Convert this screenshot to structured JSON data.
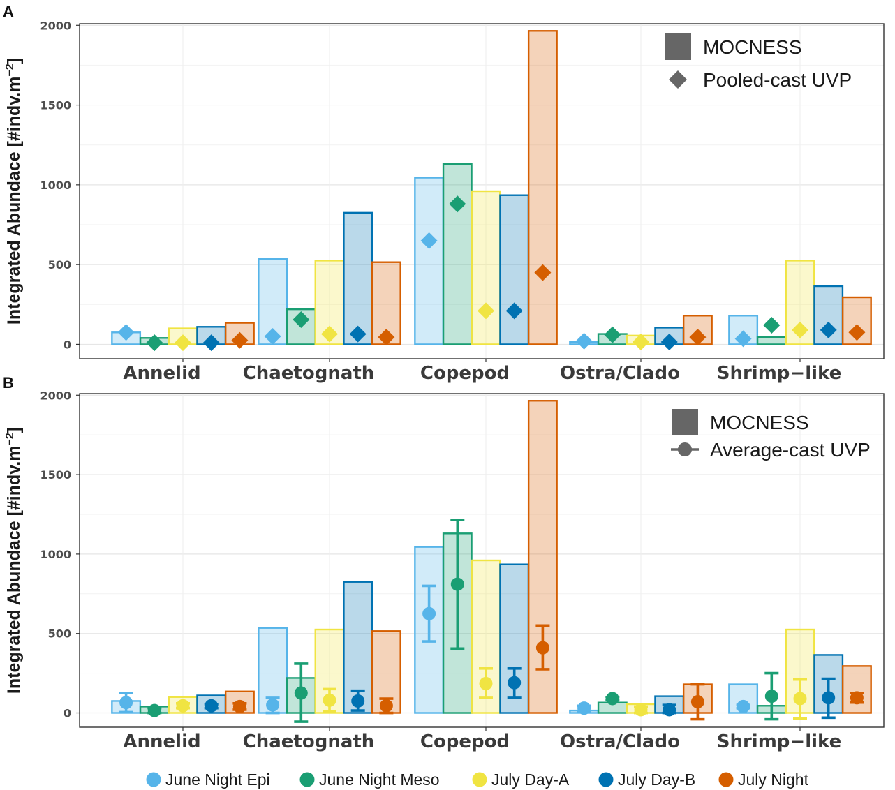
{
  "figure": {
    "series": [
      {
        "name": "June Night Epi",
        "color": "#56B4E9"
      },
      {
        "name": "June Night Meso",
        "color": "#1A9E73"
      },
      {
        "name": "July Day-A",
        "color": "#F0E442"
      },
      {
        "name": "July Day-B",
        "color": "#0072B2"
      },
      {
        "name": "July Night",
        "color": "#D55E00"
      }
    ]
  },
  "chart_data": [
    {
      "panel": "A",
      "type": "bar",
      "ylabel": "Integrated Abundace [#indv.m⁻²]",
      "ylabel_main": "Integrated Abundace [#indv.m",
      "ylabel_sup": "−2",
      "ylabel_close": "]",
      "ylim": [
        -90,
        2010
      ],
      "yticks": [
        0,
        500,
        1000,
        1500,
        2000
      ],
      "categories": [
        "Annelid",
        "Chaetognath",
        "Copepod",
        "Ostra/Clado",
        "Shrimp−like"
      ],
      "legend": {
        "position": "top-right",
        "entries": [
          "MOCNESS",
          "Pooled-cast UVP"
        ]
      },
      "series": [
        {
          "name": "June Night Epi",
          "mocness": [
            75,
            535,
            1045,
            15,
            180
          ],
          "uvp": [
            75,
            50,
            650,
            20,
            35
          ]
        },
        {
          "name": "June Night Meso",
          "mocness": [
            40,
            220,
            1130,
            65,
            45
          ],
          "uvp": [
            10,
            155,
            880,
            60,
            120
          ]
        },
        {
          "name": "July Day-A",
          "mocness": [
            100,
            525,
            960,
            55,
            525
          ],
          "uvp": [
            10,
            65,
            210,
            15,
            90
          ]
        },
        {
          "name": "July Day-B",
          "mocness": [
            110,
            825,
            935,
            105,
            365
          ],
          "uvp": [
            10,
            65,
            210,
            15,
            90
          ]
        },
        {
          "name": "July Night",
          "mocness": [
            135,
            515,
            1965,
            180,
            295
          ],
          "uvp": [
            25,
            45,
            450,
            45,
            75
          ]
        }
      ]
    },
    {
      "panel": "B",
      "type": "bar",
      "ylabel": "Integrated Abundace [#indv.m⁻²]",
      "ylabel_main": "Integrated Abundace [#indv.m",
      "ylabel_sup": "−2",
      "ylabel_close": "]",
      "ylim": [
        -90,
        2010
      ],
      "yticks": [
        0,
        500,
        1000,
        1500,
        2000
      ],
      "categories": [
        "Annelid",
        "Chaetognath",
        "Copepod",
        "Ostra/Clado",
        "Shrimp−like"
      ],
      "legend": {
        "position": "top-right",
        "entries": [
          "MOCNESS",
          "Average-cast UVP"
        ]
      },
      "series": [
        {
          "name": "June Night Epi",
          "mocness": [
            75,
            535,
            1045,
            15,
            180
          ],
          "uvp": [
            65,
            50,
            625,
            30,
            40
          ],
          "uvp_low": [
            5,
            0,
            450,
            10,
            30
          ],
          "uvp_high": [
            125,
            95,
            800,
            45,
            50
          ]
        },
        {
          "name": "June Night Meso",
          "mocness": [
            40,
            220,
            1130,
            65,
            45
          ],
          "uvp": [
            15,
            125,
            810,
            90,
            105
          ],
          "uvp_low": [
            0,
            -55,
            405,
            80,
            -40
          ],
          "uvp_high": [
            30,
            310,
            1215,
            100,
            250
          ]
        },
        {
          "name": "July Day-A",
          "mocness": [
            100,
            525,
            960,
            55,
            525
          ],
          "uvp": [
            45,
            80,
            185,
            20,
            90
          ],
          "uvp_low": [
            30,
            10,
            95,
            0,
            -35
          ],
          "uvp_high": [
            60,
            150,
            280,
            40,
            210
          ]
        },
        {
          "name": "July Day-B",
          "mocness": [
            110,
            825,
            935,
            105,
            365
          ],
          "uvp": [
            45,
            75,
            190,
            20,
            95
          ],
          "uvp_low": [
            30,
            15,
            95,
            0,
            -30
          ],
          "uvp_high": [
            55,
            140,
            280,
            50,
            215
          ]
        },
        {
          "name": "July Night",
          "mocness": [
            135,
            515,
            1965,
            180,
            295
          ],
          "uvp": [
            40,
            45,
            410,
            70,
            95
          ],
          "uvp_low": [
            20,
            0,
            275,
            -40,
            65
          ],
          "uvp_high": [
            60,
            90,
            550,
            180,
            125
          ]
        }
      ]
    }
  ]
}
